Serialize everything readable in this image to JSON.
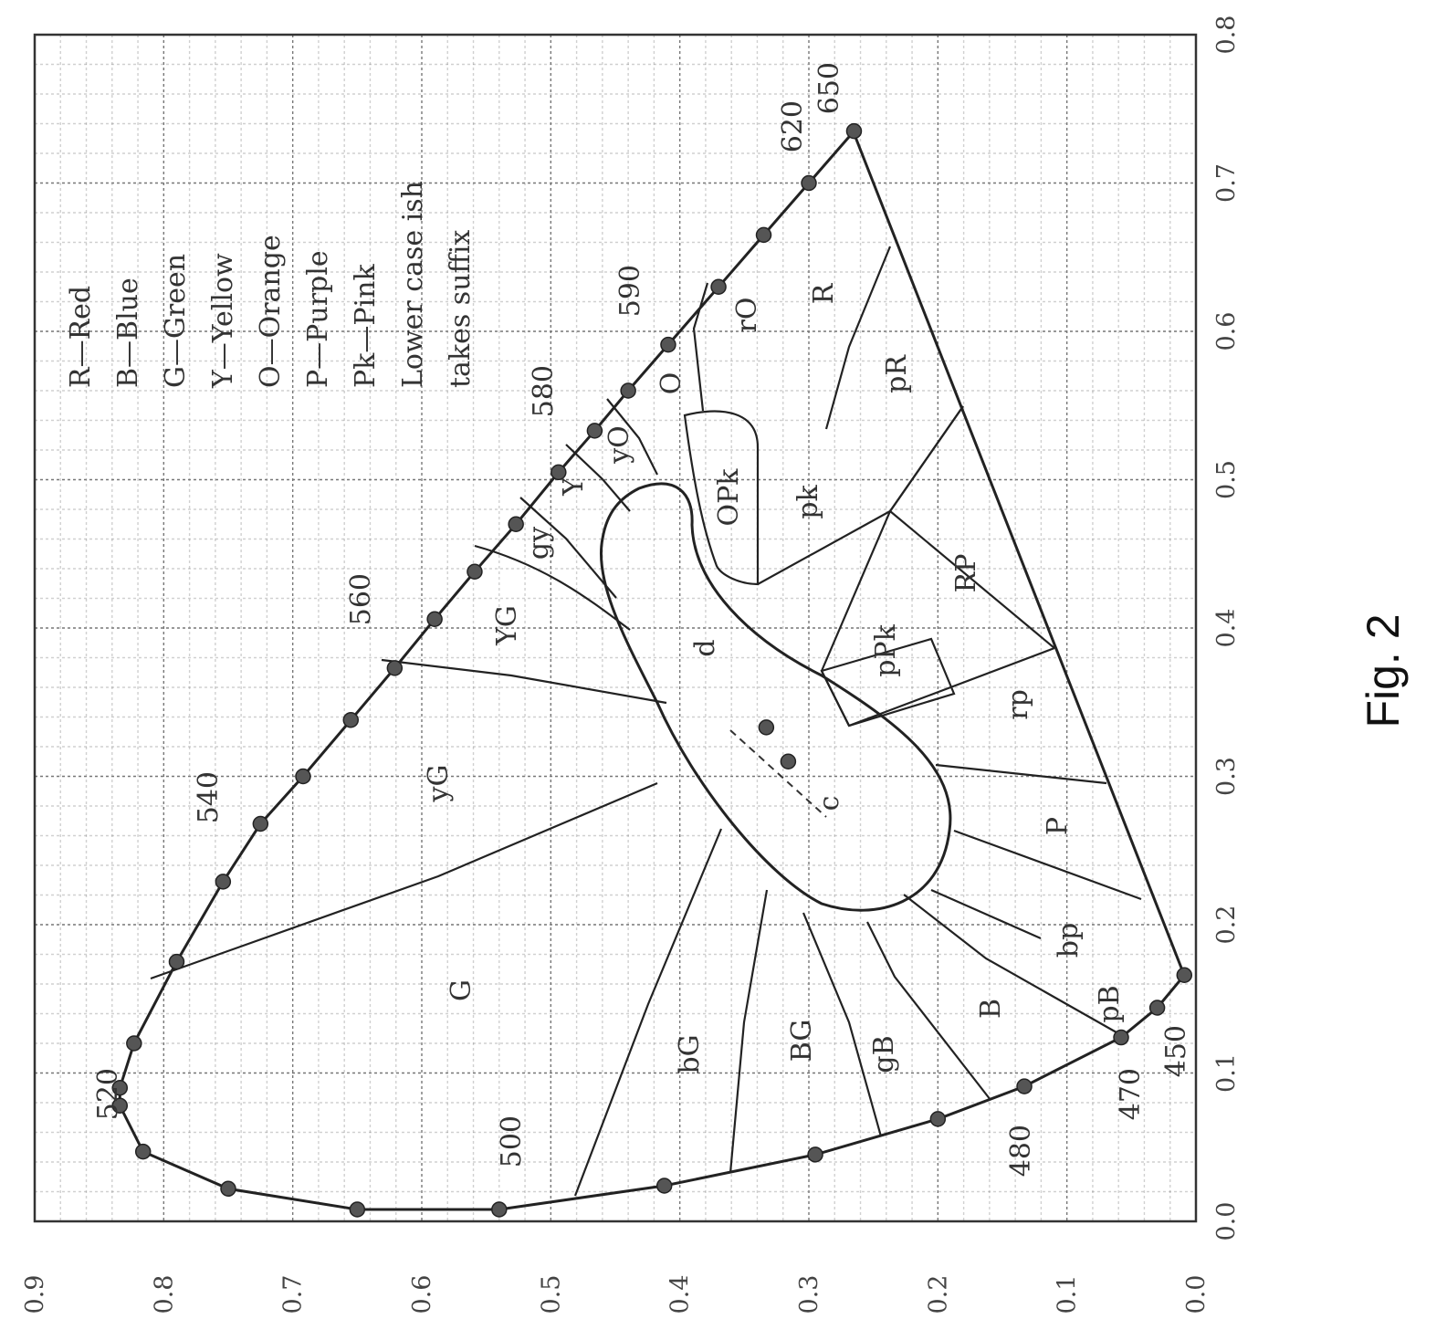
{
  "figure": {
    "caption": "Fig. 2",
    "x_ticks": [
      "0.0",
      "0.1",
      "0.2",
      "0.3",
      "0.4",
      "0.5",
      "0.6",
      "0.7",
      "0.8"
    ],
    "y_ticks": [
      "0.0",
      "0.1",
      "0.2",
      "0.3",
      "0.4",
      "0.5",
      "0.6",
      "0.7",
      "0.8",
      "0.9"
    ],
    "wavelengths": [
      "650",
      "620",
      "590",
      "580",
      "560",
      "540",
      "520",
      "500",
      "480",
      "470",
      "450"
    ],
    "legend": [
      "R—Red",
      "B—Blue",
      "G—Green",
      "Y—Yellow",
      "O—Orange",
      "P—Purple",
      "Pk—Pink",
      "Lower case ish",
      "takes suffix"
    ],
    "regions": [
      "G",
      "yG",
      "YG",
      "gy",
      "Y",
      "yO",
      "O",
      "rO",
      "R",
      "pR",
      "OPk",
      "pk",
      "RP",
      "pPk",
      "rp",
      "P",
      "bp",
      "pB",
      "B",
      "gB",
      "BG",
      "bG",
      "d",
      "c"
    ]
  },
  "chart_data": {
    "type": "scatter",
    "xlim": [
      0.0,
      0.8
    ],
    "ylim": [
      0.0,
      0.9
    ],
    "x_ticks": [
      0.0,
      0.1,
      0.2,
      0.3,
      0.4,
      0.5,
      0.6,
      0.7,
      0.8
    ],
    "y_ticks": [
      0.0,
      0.1,
      0.2,
      0.3,
      0.4,
      0.5,
      0.6,
      0.7,
      0.8,
      0.9
    ],
    "grid": true,
    "legend_placement": "top-left",
    "spectral_locus": [
      {
        "x": 0.735,
        "y": 0.265
      },
      {
        "x": 0.7,
        "y": 0.3
      },
      {
        "x": 0.665,
        "y": 0.335
      },
      {
        "x": 0.63,
        "y": 0.37
      },
      {
        "x": 0.591,
        "y": 0.409
      },
      {
        "x": 0.56,
        "y": 0.44
      },
      {
        "x": 0.533,
        "y": 0.466
      },
      {
        "x": 0.505,
        "y": 0.494
      },
      {
        "x": 0.47,
        "y": 0.527
      },
      {
        "x": 0.438,
        "y": 0.559
      },
      {
        "x": 0.406,
        "y": 0.59
      },
      {
        "x": 0.373,
        "y": 0.621
      },
      {
        "x": 0.338,
        "y": 0.655
      },
      {
        "x": 0.3,
        "y": 0.692
      },
      {
        "x": 0.268,
        "y": 0.725
      },
      {
        "x": 0.229,
        "y": 0.754
      },
      {
        "x": 0.175,
        "y": 0.79
      },
      {
        "x": 0.12,
        "y": 0.823
      },
      {
        "x": 0.09,
        "y": 0.834
      },
      {
        "x": 0.078,
        "y": 0.834
      },
      {
        "x": 0.047,
        "y": 0.816
      },
      {
        "x": 0.022,
        "y": 0.75
      },
      {
        "x": 0.008,
        "y": 0.65
      },
      {
        "x": 0.008,
        "y": 0.54
      },
      {
        "x": 0.024,
        "y": 0.412
      },
      {
        "x": 0.045,
        "y": 0.295
      },
      {
        "x": 0.069,
        "y": 0.2
      },
      {
        "x": 0.091,
        "y": 0.133
      },
      {
        "x": 0.124,
        "y": 0.058
      },
      {
        "x": 0.144,
        "y": 0.03
      },
      {
        "x": 0.166,
        "y": 0.009
      }
    ],
    "neutral_points": [
      {
        "x": 0.333,
        "y": 0.333
      },
      {
        "x": 0.31,
        "y": 0.316
      }
    ]
  }
}
